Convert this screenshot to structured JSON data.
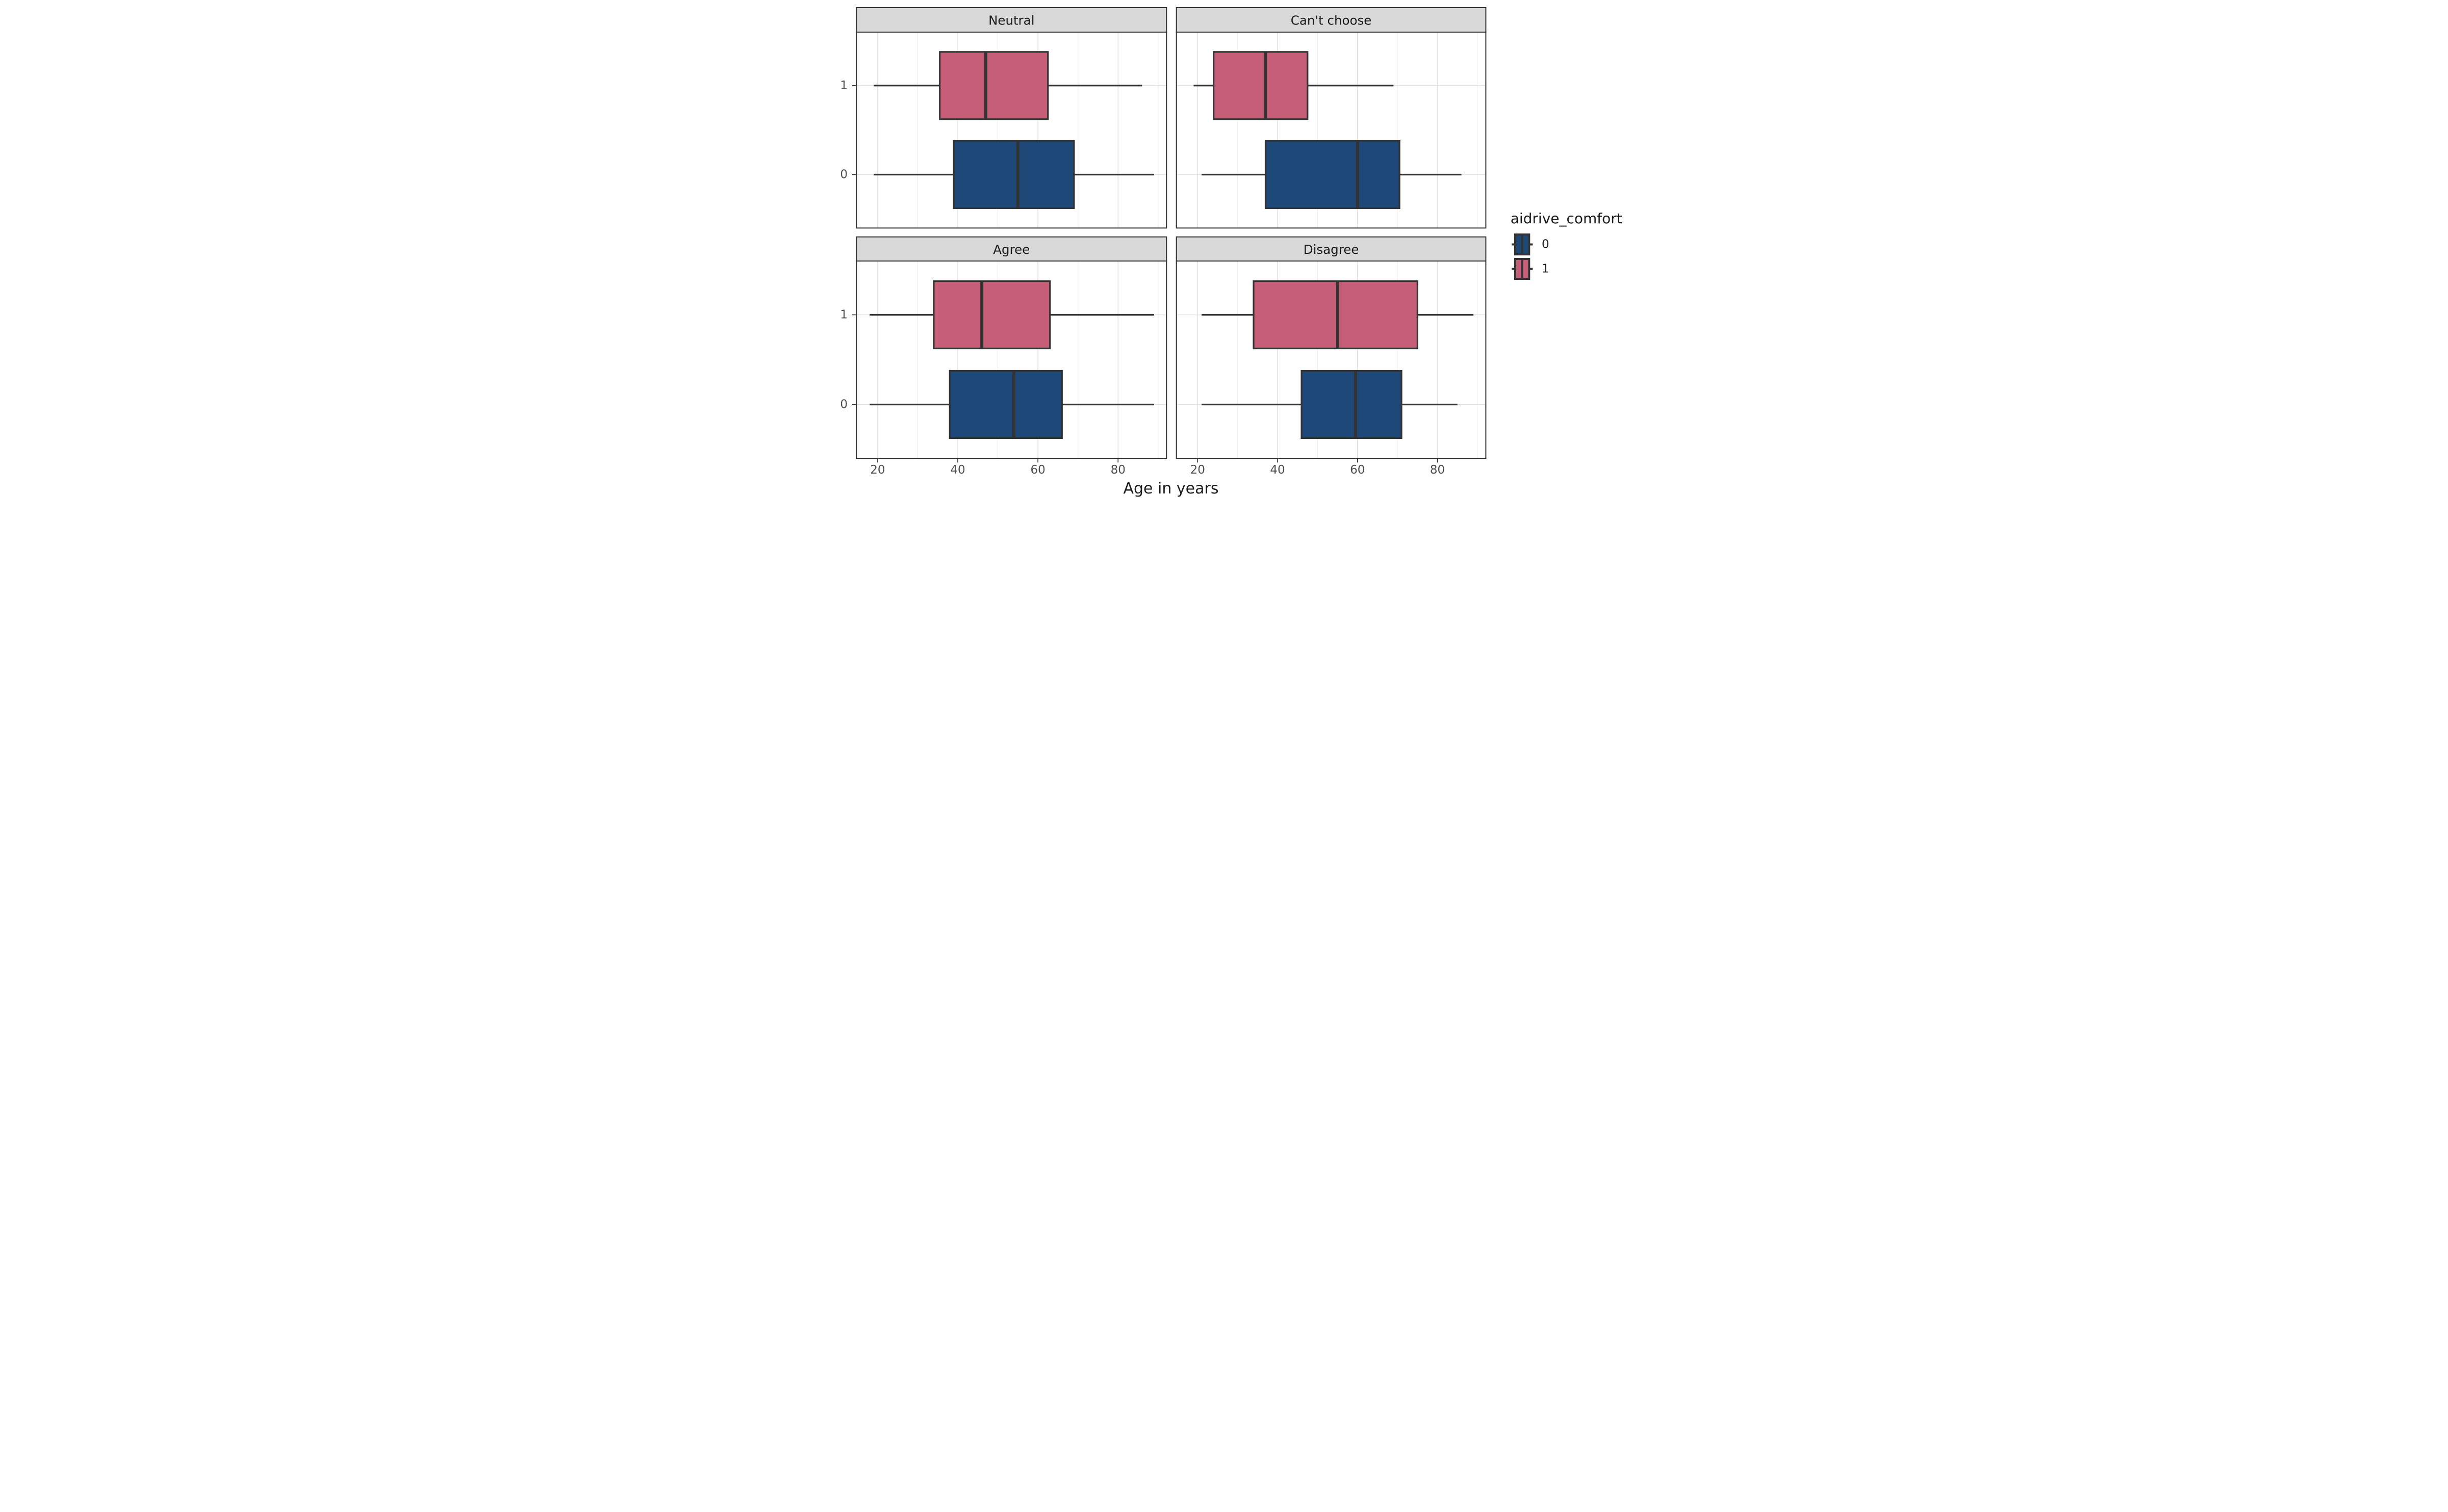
{
  "figure": {
    "xlabel": "Age in years",
    "x_tick_labels": [
      "20",
      "40",
      "60",
      "80"
    ],
    "y_tick_labels_top_to_bottom": [
      "1",
      "0"
    ],
    "legend_title": "aidrive_comfort"
  },
  "chart_data": {
    "type": "boxplot",
    "orientation": "horizontal",
    "facet_layout": "2x2",
    "xlabel": "Age in years",
    "xlim": [
      14.7,
      92.1
    ],
    "x_major_ticks": [
      20,
      40,
      60,
      80
    ],
    "x_minor_gridlines": [
      30,
      50,
      70,
      90
    ],
    "y_categories": [
      "1",
      "0"
    ],
    "grid": true,
    "legend_position": "right",
    "legend": {
      "title": "aidrive_comfort",
      "items": [
        {
          "label": "0",
          "color": "#1D4878"
        },
        {
          "label": "1",
          "color": "#C75E78"
        }
      ]
    },
    "facets": [
      {
        "label": "Neutral",
        "grid": [
          0,
          0
        ],
        "boxes": [
          {
            "group": "1",
            "whisker_min": 19,
            "q1": 35.5,
            "median": 47,
            "q3": 62.5,
            "whisker_max": 86
          },
          {
            "group": "0",
            "whisker_min": 19,
            "q1": 39,
            "median": 55,
            "q3": 69,
            "whisker_max": 89
          }
        ]
      },
      {
        "label": "Can't choose",
        "grid": [
          0,
          1
        ],
        "boxes": [
          {
            "group": "1",
            "whisker_min": 19,
            "q1": 24,
            "median": 37,
            "q3": 47.5,
            "whisker_max": 69
          },
          {
            "group": "0",
            "whisker_min": 21,
            "q1": 37,
            "median": 60,
            "q3": 70.5,
            "whisker_max": 86
          }
        ]
      },
      {
        "label": "Agree",
        "grid": [
          1,
          0
        ],
        "boxes": [
          {
            "group": "1",
            "whisker_min": 18,
            "q1": 34,
            "median": 46,
            "q3": 63,
            "whisker_max": 89
          },
          {
            "group": "0",
            "whisker_min": 18,
            "q1": 38,
            "median": 54,
            "q3": 66,
            "whisker_max": 89
          }
        ]
      },
      {
        "label": "Disagree",
        "grid": [
          1,
          1
        ],
        "boxes": [
          {
            "group": "1",
            "whisker_min": 21,
            "q1": 34,
            "median": 55,
            "q3": 75,
            "whisker_max": 89
          },
          {
            "group": "0",
            "whisker_min": 21,
            "q1": 46,
            "median": 59.5,
            "q3": 71,
            "whisker_max": 85
          }
        ]
      }
    ]
  },
  "style": {
    "group_colors": {
      "0": "#1D4878",
      "1": "#C75E78"
    },
    "box_outline": "#333333",
    "panel_background": "#ffffff",
    "panel_border": "#333333",
    "strip_fill": "#d9d9d9",
    "strip_border": "#333333",
    "grid_major": "#e3e3e3",
    "grid_minor": "#efefef",
    "axis_text_color": "#4d4d4d",
    "text_color": "#1a1a1a",
    "background": "#ffffff"
  }
}
